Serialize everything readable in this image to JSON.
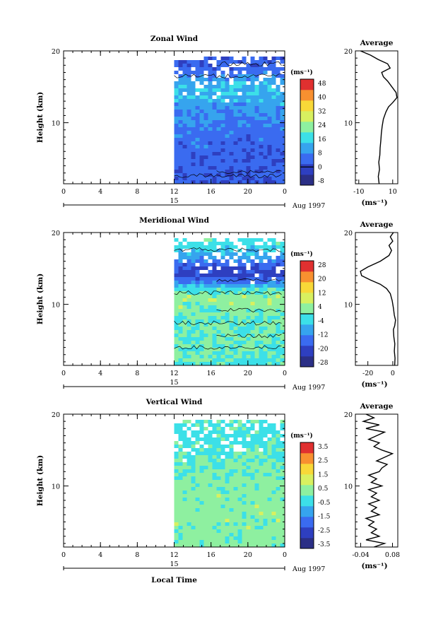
{
  "chart_data": [
    {
      "type": "heatmap",
      "title": "Zonal Wind",
      "ylabel": "Height (km)",
      "xlabel": "",
      "x_ticks": [
        "0",
        "4",
        "8",
        "12",
        "16",
        "20",
        "0"
      ],
      "xlim": [
        0,
        24
      ],
      "y_ticks": [
        "10",
        "20"
      ],
      "ylim": [
        1.5,
        20
      ],
      "date_day": "15",
      "date_label": "Aug 1997",
      "data_start_hour": 12,
      "colorbar_unit": "(ms⁻¹)",
      "colorbar_ticks": [
        "48",
        "40",
        "32",
        "24",
        "16",
        "8",
        "0",
        "-8"
      ],
      "colorbar_range": [
        -12,
        52
      ],
      "field_profile": [
        {
          "h": 2,
          "v": 2
        },
        {
          "h": 5,
          "v": 3
        },
        {
          "h": 8,
          "v": 4
        },
        {
          "h": 10,
          "v": 6
        },
        {
          "h": 12,
          "v": 9
        },
        {
          "h": 13.5,
          "v": 12
        },
        {
          "h": 15,
          "v": 14
        },
        {
          "h": 16,
          "v": 10
        },
        {
          "h": 17,
          "v": 5
        },
        {
          "h": 18,
          "v": 3
        },
        {
          "h": 19,
          "v": 1
        },
        {
          "h": 20,
          "v": 0
        }
      ],
      "profile": {
        "title": "Average",
        "xlabel": "(ms⁻¹)",
        "x_ticks": [
          "-10",
          "10"
        ],
        "xlim": [
          -12,
          13
        ],
        "y_ticks": [
          "10",
          "20"
        ],
        "ylim": [
          1.5,
          20
        ],
        "points": [
          {
            "h": 1.5,
            "v": 2
          },
          {
            "h": 2.5,
            "v": 1.5
          },
          {
            "h": 3.5,
            "v": 2.2
          },
          {
            "h": 4.5,
            "v": 1.8
          },
          {
            "h": 5.5,
            "v": 2.4
          },
          {
            "h": 6.5,
            "v": 2.6
          },
          {
            "h": 7.5,
            "v": 3
          },
          {
            "h": 8.5,
            "v": 3.3
          },
          {
            "h": 9.5,
            "v": 3.8
          },
          {
            "h": 10.5,
            "v": 4.5
          },
          {
            "h": 11.5,
            "v": 6
          },
          {
            "h": 12.2,
            "v": 7.5
          },
          {
            "h": 12.8,
            "v": 10
          },
          {
            "h": 13.5,
            "v": 12.5
          },
          {
            "h": 14.2,
            "v": 12
          },
          {
            "h": 15,
            "v": 9.5
          },
          {
            "h": 15.8,
            "v": 7
          },
          {
            "h": 16.4,
            "v": 4.5
          },
          {
            "h": 17,
            "v": 3.5
          },
          {
            "h": 17.6,
            "v": 8.5
          },
          {
            "h": 18.2,
            "v": 7
          },
          {
            "h": 18.8,
            "v": 1.5
          },
          {
            "h": 19.4,
            "v": -3
          },
          {
            "h": 20,
            "v": -9
          }
        ]
      }
    },
    {
      "type": "heatmap",
      "title": "Meridional Wind",
      "ylabel": "Height (km)",
      "xlabel": "",
      "x_ticks": [
        "0",
        "4",
        "8",
        "12",
        "16",
        "20",
        "0"
      ],
      "xlim": [
        0,
        24
      ],
      "y_ticks": [
        "10",
        "20"
      ],
      "ylim": [
        1.5,
        20
      ],
      "date_day": "15",
      "date_label": "Aug 1997",
      "data_start_hour": 12,
      "colorbar_unit": "(ms⁻¹)",
      "colorbar_ticks": [
        "28",
        "20",
        "12",
        "4",
        "-4",
        "-12",
        "-20",
        "-28"
      ],
      "colorbar_range": [
        -32,
        32
      ],
      "field_profile": [
        {
          "h": 2,
          "v": 0
        },
        {
          "h": 5,
          "v": 0
        },
        {
          "h": 8,
          "v": 1
        },
        {
          "h": 10,
          "v": 3
        },
        {
          "h": 11,
          "v": 4
        },
        {
          "h": 12,
          "v": -2
        },
        {
          "h": 13,
          "v": -12
        },
        {
          "h": 14,
          "v": -22
        },
        {
          "h": 15,
          "v": -20
        },
        {
          "h": 16,
          "v": -14
        },
        {
          "h": 17,
          "v": -8
        },
        {
          "h": 18,
          "v": -4
        },
        {
          "h": 19,
          "v": -2
        },
        {
          "h": 20,
          "v": -1
        }
      ],
      "profile": {
        "title": "Average",
        "xlabel": "(ms⁻¹)",
        "x_ticks": [
          "-20",
          "0"
        ],
        "xlim": [
          -30,
          4
        ],
        "y_ticks": [
          "10",
          "20"
        ],
        "ylim": [
          1.5,
          20
        ],
        "points": [
          {
            "h": 1.5,
            "v": 1.5
          },
          {
            "h": 2.5,
            "v": 1.8
          },
          {
            "h": 3.5,
            "v": 1.2
          },
          {
            "h": 4.5,
            "v": 1.6
          },
          {
            "h": 5.5,
            "v": 0.8
          },
          {
            "h": 6.5,
            "v": 0.5
          },
          {
            "h": 7,
            "v": 1.5
          },
          {
            "h": 7.8,
            "v": 2.2
          },
          {
            "h": 8.5,
            "v": 1.2
          },
          {
            "h": 9.5,
            "v": 0.5
          },
          {
            "h": 10.5,
            "v": -0.5
          },
          {
            "h": 11.5,
            "v": -2
          },
          {
            "h": 12.2,
            "v": -5
          },
          {
            "h": 12.8,
            "v": -10
          },
          {
            "h": 13.4,
            "v": -18
          },
          {
            "h": 14,
            "v": -25
          },
          {
            "h": 14.6,
            "v": -26
          },
          {
            "h": 15.2,
            "v": -20
          },
          {
            "h": 16,
            "v": -10
          },
          {
            "h": 16.8,
            "v": -3
          },
          {
            "h": 17.5,
            "v": -1
          },
          {
            "h": 18.2,
            "v": -3
          },
          {
            "h": 18.8,
            "v": 0
          },
          {
            "h": 19.4,
            "v": -2
          },
          {
            "h": 20,
            "v": 0.5
          }
        ]
      }
    },
    {
      "type": "heatmap",
      "title": "Vertical Wind",
      "ylabel": "Height (km)",
      "xlabel": "Local Time",
      "x_ticks": [
        "0",
        "4",
        "8",
        "12",
        "16",
        "20",
        "0"
      ],
      "xlim": [
        0,
        24
      ],
      "y_ticks": [
        "10",
        "20"
      ],
      "ylim": [
        1.5,
        20
      ],
      "date_day": "15",
      "date_label": "Aug 1997",
      "data_start_hour": 12,
      "colorbar_unit": "(ms⁻¹)",
      "colorbar_ticks": [
        "3.5",
        "2.5",
        "1.5",
        "0.5",
        "-0.5",
        "-1.5",
        "-2.5",
        "-3.5"
      ],
      "colorbar_range": [
        -4,
        4
      ],
      "field_profile": [
        {
          "h": 2,
          "v": 0.3
        },
        {
          "h": 6,
          "v": 0.4
        },
        {
          "h": 10,
          "v": 0.3
        },
        {
          "h": 14,
          "v": 0.1
        },
        {
          "h": 17,
          "v": -0.3
        },
        {
          "h": 20,
          "v": 0
        }
      ],
      "profile": {
        "title": "Average",
        "xlabel": "(ms⁻¹)",
        "x_ticks": [
          "-0.04",
          "0.08"
        ],
        "xlim": [
          -0.06,
          0.1
        ],
        "y_ticks": [
          "10",
          "20"
        ],
        "ylim": [
          1.5,
          20
        ],
        "points": [
          {
            "h": 1.5,
            "v": 0.01
          },
          {
            "h": 2.0,
            "v": 0.05
          },
          {
            "h": 2.5,
            "v": -0.02
          },
          {
            "h": 3.0,
            "v": 0.03
          },
          {
            "h": 3.5,
            "v": 0.0
          },
          {
            "h": 4.0,
            "v": 0.02
          },
          {
            "h": 4.5,
            "v": -0.01
          },
          {
            "h": 5.0,
            "v": 0.01
          },
          {
            "h": 5.5,
            "v": -0.02
          },
          {
            "h": 6.0,
            "v": 0.03
          },
          {
            "h": 6.5,
            "v": 0.0
          },
          {
            "h": 7.0,
            "v": 0.02
          },
          {
            "h": 7.5,
            "v": -0.01
          },
          {
            "h": 8.0,
            "v": 0.03
          },
          {
            "h": 8.5,
            "v": 0.0
          },
          {
            "h": 9.0,
            "v": 0.02
          },
          {
            "h": 9.5,
            "v": -0.01
          },
          {
            "h": 10.0,
            "v": 0.04
          },
          {
            "h": 10.5,
            "v": 0.0
          },
          {
            "h": 11.0,
            "v": 0.02
          },
          {
            "h": 11.5,
            "v": -0.01
          },
          {
            "h": 12.0,
            "v": 0.03
          },
          {
            "h": 12.5,
            "v": 0.04
          },
          {
            "h": 13.0,
            "v": 0.06
          },
          {
            "h": 13.5,
            "v": 0.02
          },
          {
            "h": 14.0,
            "v": 0.05
          },
          {
            "h": 14.5,
            "v": 0.08
          },
          {
            "h": 15.0,
            "v": 0.04
          },
          {
            "h": 15.5,
            "v": 0.01
          },
          {
            "h": 16.0,
            "v": 0.03
          },
          {
            "h": 16.5,
            "v": -0.01
          },
          {
            "h": 17.0,
            "v": 0.02
          },
          {
            "h": 17.5,
            "v": 0.05
          },
          {
            "h": 18.0,
            "v": -0.02
          },
          {
            "h": 18.5,
            "v": 0.03
          },
          {
            "h": 19.0,
            "v": -0.03
          },
          {
            "h": 19.5,
            "v": 0.01
          },
          {
            "h": 20.0,
            "v": -0.02
          }
        ]
      }
    }
  ],
  "colors": {
    "colorscale": [
      "#2b2f86",
      "#2e3fc0",
      "#3a6bf0",
      "#36a4ee",
      "#3ce0e8",
      "#8ef0a0",
      "#d8f060",
      "#f8d838",
      "#f89030",
      "#e03030"
    ]
  }
}
